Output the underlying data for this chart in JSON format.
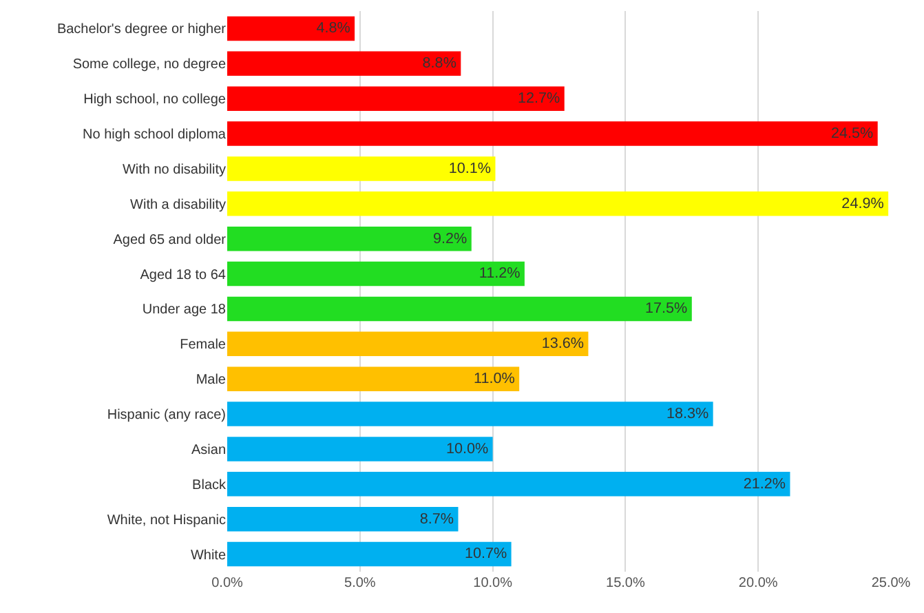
{
  "chart_data": {
    "type": "bar",
    "orientation": "horizontal",
    "categories": [
      "Bachelor's degree or higher",
      "Some college, no degree",
      "High school, no college",
      "No high school diploma",
      "With no disability",
      "With a disability",
      "Aged 65 and older",
      "Aged 18 to 64",
      "Under age 18",
      "Female",
      "Male",
      "Hispanic (any race)",
      "Asian",
      "Black",
      "White, not Hispanic",
      "White"
    ],
    "values": [
      4.8,
      8.8,
      12.7,
      24.5,
      10.1,
      24.9,
      9.2,
      11.2,
      17.5,
      13.6,
      11.0,
      18.3,
      10.0,
      21.2,
      8.7,
      10.7
    ],
    "value_labels": [
      "4.8%",
      "8.8%",
      "12.7%",
      "24.5%",
      "10.1%",
      "24.9%",
      "9.2%",
      "11.2%",
      "17.5%",
      "13.6%",
      "11.0%",
      "18.3%",
      "10.0%",
      "21.2%",
      "8.7%",
      "10.7%"
    ],
    "colors": [
      "#ff0000",
      "#ff0000",
      "#ff0000",
      "#ff0000",
      "#ffff00",
      "#ffff00",
      "#22dd22",
      "#22dd22",
      "#22dd22",
      "#ffc000",
      "#ffc000",
      "#00b0f0",
      "#00b0f0",
      "#00b0f0",
      "#00b0f0",
      "#00b0f0"
    ],
    "xlim": [
      0,
      25
    ],
    "xticks": [
      {
        "value": 0,
        "label": "0.0%"
      },
      {
        "value": 5,
        "label": "5.0%"
      },
      {
        "value": 10,
        "label": "10.0%"
      },
      {
        "value": 15,
        "label": "15.0%"
      },
      {
        "value": 20,
        "label": "20.0%"
      },
      {
        "value": 25,
        "label": "25.0%"
      }
    ],
    "grid": "x"
  }
}
